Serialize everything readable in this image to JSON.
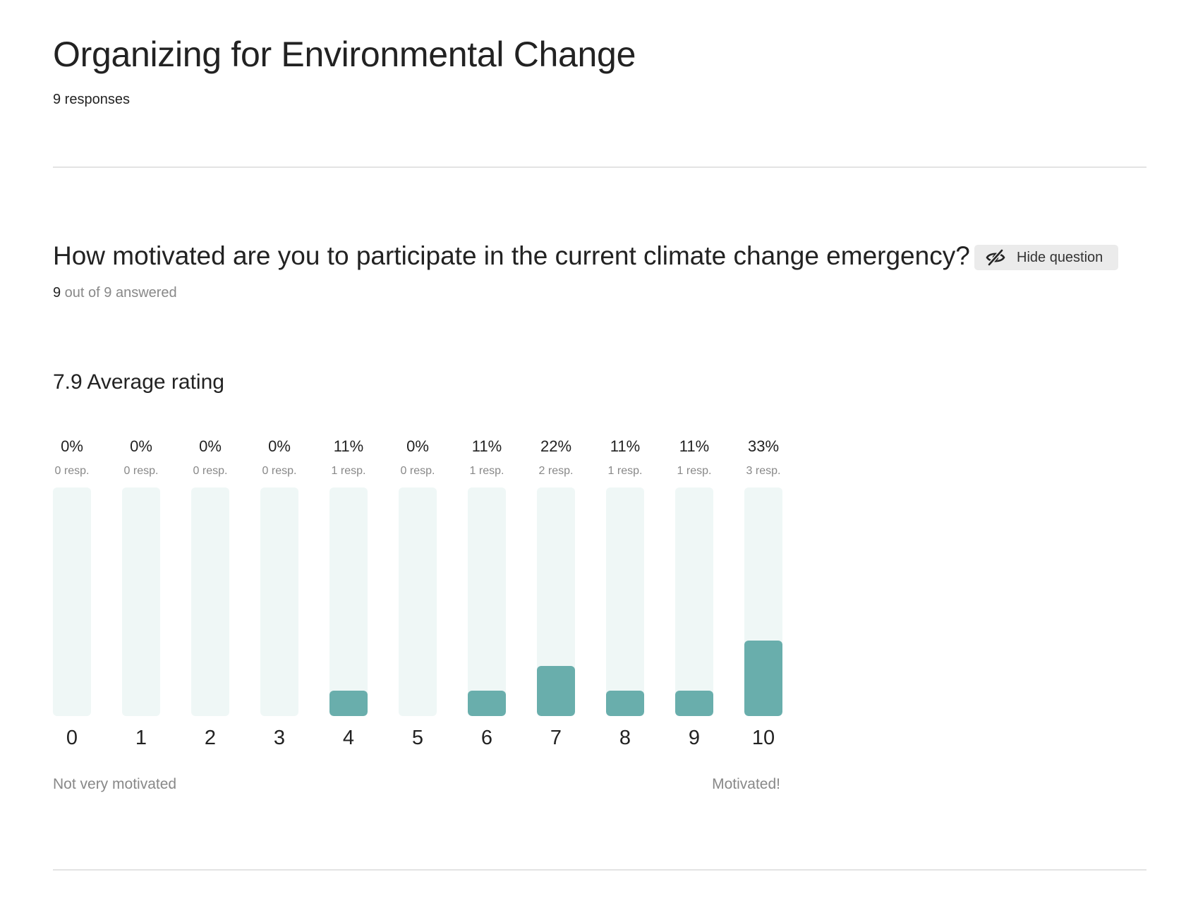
{
  "form": {
    "title": "Organizing for Environmental Change",
    "responses": "9 responses"
  },
  "question": {
    "title": "How motivated are you to participate in the current climate change emergency?",
    "hide_button": "Hide question",
    "answered_count": "9",
    "answered_suffix": " out of 9 answered",
    "average": "7.9 Average rating",
    "scale_low_label": "Not very motivated",
    "scale_high_label": "Motivated!"
  },
  "colors": {
    "bar_fill": "#69aeac",
    "bar_track": "#eff7f6"
  },
  "icons": {
    "hide": "eye-slash-icon"
  },
  "chart_data": {
    "type": "bar",
    "categories": [
      "0",
      "1",
      "2",
      "3",
      "4",
      "5",
      "6",
      "7",
      "8",
      "9",
      "10"
    ],
    "percent_labels": [
      "0%",
      "0%",
      "0%",
      "0%",
      "11%",
      "0%",
      "11%",
      "22%",
      "11%",
      "11%",
      "33%"
    ],
    "response_labels": [
      "0 resp.",
      "0 resp.",
      "0 resp.",
      "0 resp.",
      "1 resp.",
      "0 resp.",
      "1 resp.",
      "2 resp.",
      "1 resp.",
      "1 resp.",
      "3 resp."
    ],
    "values": [
      0,
      0,
      0,
      0,
      11,
      0,
      11,
      22,
      11,
      11,
      33
    ],
    "ylim": [
      0,
      100
    ],
    "title": "",
    "xlabel": "",
    "ylabel": ""
  }
}
